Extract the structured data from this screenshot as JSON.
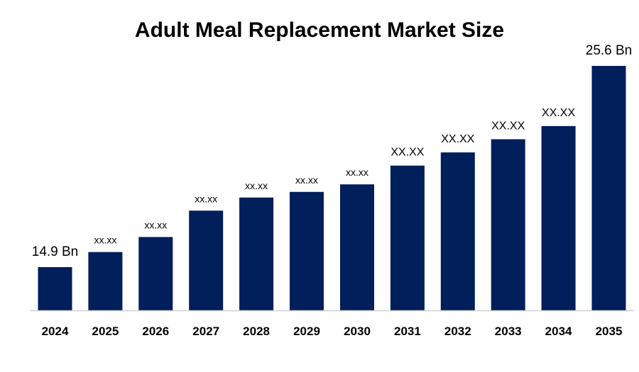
{
  "chart_data": {
    "type": "bar",
    "title": "Adult Meal Replacement Market Size",
    "xlabel": "",
    "ylabel": "",
    "categories": [
      "2024",
      "2025",
      "2026",
      "2027",
      "2028",
      "2029",
      "2030",
      "2031",
      "2032",
      "2033",
      "2034",
      "2035"
    ],
    "values": [
      14.9,
      15.7,
      16.5,
      17.9,
      18.6,
      18.9,
      19.3,
      20.3,
      21.0,
      21.7,
      22.4,
      25.6
    ],
    "data_labels": [
      "14.9 Bn",
      "xx.xx",
      "xx.xx",
      "xx.xx",
      "xx.xx",
      "xx.xx",
      "xx.xx",
      "XX.XX",
      "XX.XX",
      "XX.XX",
      "XX.XX",
      "25.6 Bn"
    ],
    "ylim": [
      12.6,
      25.6
    ],
    "grid": false,
    "legend": "none",
    "bar_color": "#001f5b",
    "axis_color": "#d0d0d0"
  }
}
